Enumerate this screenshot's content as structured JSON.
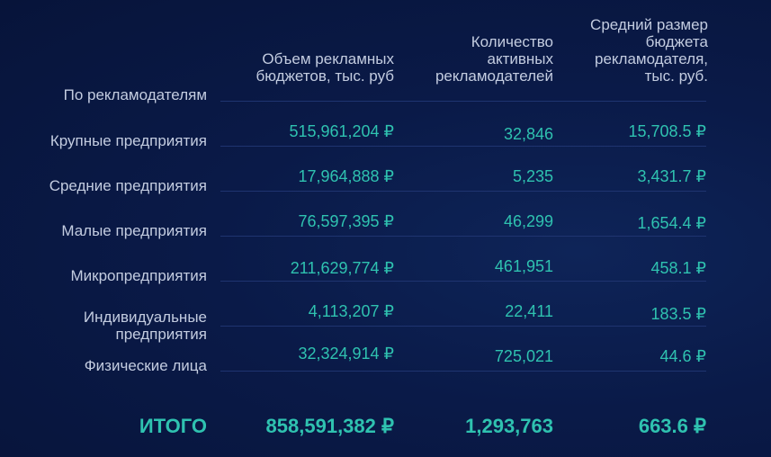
{
  "header": {
    "row_group": "По рекламодателям",
    "col1": [
      "Объем рекламных",
      "бюджетов, тыс. руб"
    ],
    "col2": [
      "Количество",
      "активных",
      "рекламодателей"
    ],
    "col3": [
      "Средний размер",
      "бюджета",
      "рекламодателя,",
      "тыс. руб."
    ]
  },
  "rows": [
    {
      "label": "Крупные предприятия",
      "budget": "515,961,204 ₽",
      "advertisers": "32,846",
      "avg": "15,708.5 ₽"
    },
    {
      "label": "Средние предприятия",
      "budget": "17,964,888 ₽",
      "advertisers": "5,235",
      "avg": "3,431.7 ₽"
    },
    {
      "label": "Малые предприятия",
      "budget": "76,597,395 ₽",
      "advertisers": "46,299",
      "avg": "1,654.4 ₽"
    },
    {
      "label": "Микропредприятия",
      "budget": "211,629,774 ₽",
      "advertisers": "461,951",
      "avg": "458.1 ₽"
    },
    {
      "label": "Индивидуальные предприятия",
      "budget": "4,113,207 ₽",
      "advertisers": "22,411",
      "avg": "183.5 ₽"
    },
    {
      "label": "Физические лица",
      "budget": "32,324,914 ₽",
      "advertisers": "725,021",
      "avg": "44.6 ₽"
    }
  ],
  "total": {
    "label": "ИТОГО",
    "budget": "858,591,382 ₽",
    "advertisers": "1,293,763",
    "avg": "663.6 ₽"
  },
  "colors": {
    "background": "#0a1a48",
    "accent": "#2fc2b0",
    "text": "#c3cce0"
  }
}
